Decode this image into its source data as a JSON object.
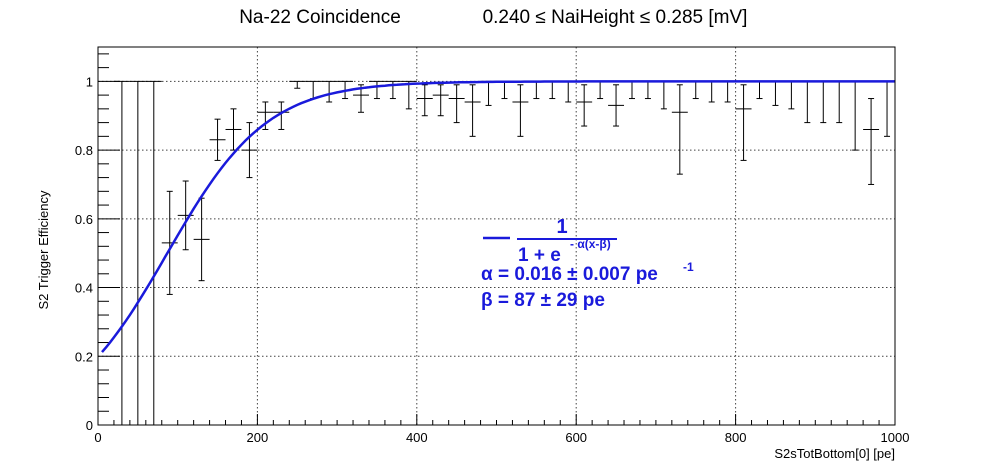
{
  "chart_data": {
    "type": "scatter",
    "title": "Na-22 Coincidence",
    "title_cut": "0.240 ≤ NaiHeight ≤ 0.285 [mV]",
    "xlabel": "S2sTotBottom[0] [pe]",
    "ylabel": "S2 Trigger Efficiency",
    "xlim": [
      0,
      1000
    ],
    "ylim": [
      0,
      1.1
    ],
    "x_ticks": [
      0,
      200,
      400,
      600,
      800,
      1000
    ],
    "y_ticks": [
      0,
      0.2,
      0.4,
      0.6,
      0.8,
      1
    ],
    "grid": true,
    "series": [
      {
        "x": [
          30,
          50,
          70,
          90,
          110,
          130,
          150,
          170,
          190,
          210,
          230,
          250,
          270,
          290,
          310,
          330,
          350,
          370,
          390,
          410,
          430,
          450,
          470,
          490,
          510,
          530,
          550,
          570,
          590,
          610,
          630,
          650,
          670,
          690,
          710,
          730,
          750,
          770,
          790,
          810,
          830,
          850,
          870,
          890,
          910,
          930,
          950,
          970,
          990
        ],
        "y": [
          1,
          1,
          1,
          0.53,
          0.61,
          0.54,
          0.83,
          0.86,
          0.8,
          0.91,
          0.91,
          1,
          1,
          1,
          1,
          0.96,
          1,
          1,
          1,
          0.95,
          0.96,
          0.95,
          0.94,
          1,
          1,
          0.94,
          1,
          1,
          1,
          0.94,
          1,
          0.93,
          1,
          1,
          1,
          0.91,
          1,
          1,
          1,
          0.92,
          1,
          1,
          1,
          1,
          1,
          1,
          1,
          0.86,
          1
        ],
        "y_err_low": [
          1,
          1,
          1,
          0.15,
          0.1,
          0.12,
          0.06,
          0.06,
          0.08,
          0.05,
          0.05,
          0.02,
          0.05,
          0.06,
          0.05,
          0.05,
          0.05,
          0.05,
          0.08,
          0.05,
          0.06,
          0.07,
          0.1,
          0.07,
          0.05,
          0.1,
          0.05,
          0.05,
          0.06,
          0.07,
          0.05,
          0.06,
          0.05,
          0.05,
          0.08,
          0.18,
          0.05,
          0.06,
          0.06,
          0.15,
          0.05,
          0.07,
          0.08,
          0.12,
          0.12,
          0.12,
          0.2,
          0.16,
          0.16
        ],
        "y_err_high": [
          0,
          0,
          0,
          0.15,
          0.1,
          0.12,
          0.06,
          0.06,
          0.08,
          0.03,
          0.03,
          0,
          0,
          0,
          0,
          0.03,
          0,
          0,
          0,
          0.04,
          0.03,
          0.04,
          0.05,
          0,
          0,
          0.05,
          0,
          0,
          0,
          0.05,
          0,
          0.06,
          0,
          0,
          0,
          0.08,
          0,
          0,
          0,
          0.07,
          0,
          0,
          0,
          0,
          0,
          0,
          0,
          0.09,
          0
        ],
        "x_err": 10
      }
    ],
    "fit": {
      "name_formula": "1 / (1 + e^(-α(x-β)))",
      "alpha": 0.016,
      "beta": 87,
      "numerator": "1",
      "denominator": "1 + e",
      "exponent": "- α(x-β)",
      "alpha_label": "α = 0.016 ± 0.007 pe",
      "alpha_unit_exp": "-1",
      "beta_label": "β = 87 ± 29 pe",
      "color": "#1a1adb"
    },
    "colors": {
      "points": "#000000",
      "fit": "#1a1adb",
      "grid": "#444444"
    }
  }
}
